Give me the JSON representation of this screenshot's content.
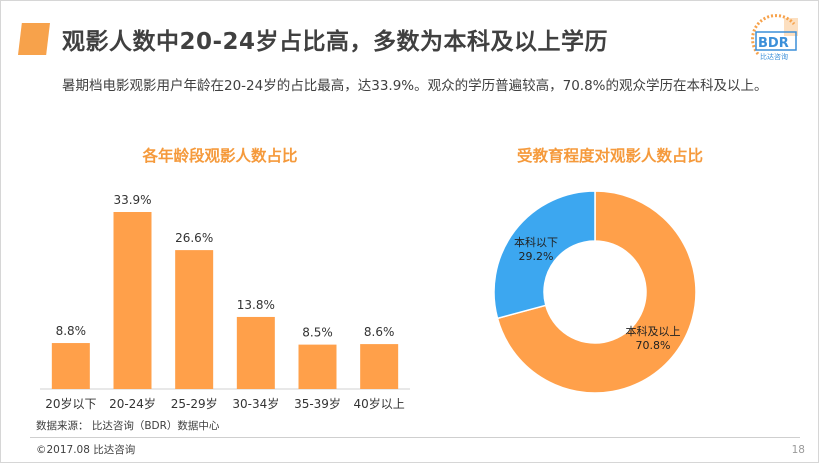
{
  "header": {
    "title": "观影人数中20-24岁占比高，多数为本科及以上学历",
    "summary": "暑期档电影观影用户年龄在20-24岁的占比最高，达33.9%。观众的学历普遍较高，70.8%的观众学历在本科及以上。"
  },
  "logo": {
    "text": "BDR",
    "subtext": "比达咨询"
  },
  "chart_data": [
    {
      "type": "bar",
      "title": "各年龄段观影人数占比",
      "categories": [
        "20岁以下",
        "20-24岁",
        "25-29岁",
        "30-34岁",
        "35-39岁",
        "40岁以上"
      ],
      "values": [
        8.8,
        33.9,
        26.6,
        13.8,
        8.5,
        8.6
      ],
      "value_labels": [
        "8.8%",
        "33.9%",
        "26.6%",
        "13.8%",
        "8.5%",
        "8.6%"
      ],
      "ylim": [
        0,
        35
      ],
      "color": "#ffa04a",
      "grid": false
    },
    {
      "type": "pie",
      "style": "donut",
      "title": "受教育程度对观影人数占比",
      "slices": [
        {
          "label": "本科及以上",
          "value": 70.8,
          "value_label": "70.8%",
          "color": "#ffa04a"
        },
        {
          "label": "本科以下",
          "value": 29.2,
          "value_label": "29.2%",
          "color": "#3ca7f0"
        }
      ]
    }
  ],
  "footer": {
    "source": "数据来源：  比达咨询（BDR）数据中心",
    "copyright": "©2017.08 比达咨询",
    "page": "18"
  }
}
